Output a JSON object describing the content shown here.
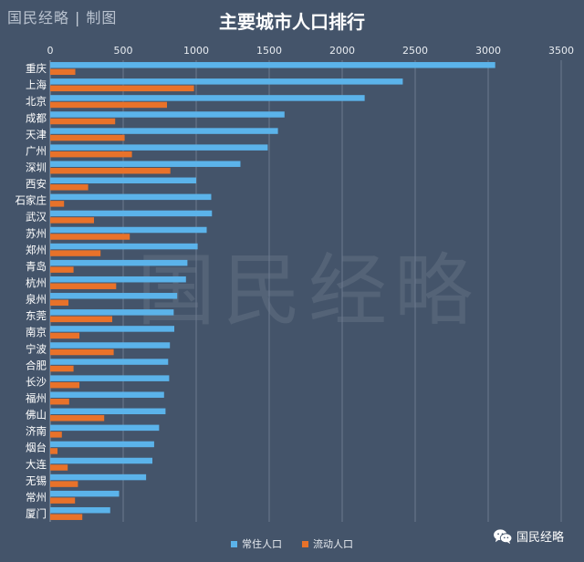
{
  "brand": {
    "name": "国民经略",
    "separator": "|",
    "suffix": "制图"
  },
  "badge": {
    "icon": "wechat-icon",
    "text": "国民经略"
  },
  "watermark": "国民经略",
  "colors": {
    "background": "#44546a",
    "resident": "#5bb3ea",
    "floating": "#e8722a",
    "grid": "#6b7a8f"
  },
  "chart_data": {
    "type": "bar",
    "orientation": "horizontal",
    "title": "主要城市人口排行",
    "xlabel": "",
    "ylabel": "",
    "xlim": [
      0,
      3500
    ],
    "xticks": [
      0,
      500,
      1000,
      1500,
      2000,
      2500,
      3000,
      3500
    ],
    "xaxis_position": "top",
    "grid": true,
    "legend_position": "bottom",
    "categories": [
      "重庆",
      "上海",
      "北京",
      "成都",
      "天津",
      "广州",
      "深圳",
      "西安",
      "石家庄",
      "武汉",
      "苏州",
      "郑州",
      "青岛",
      "杭州",
      "泉州",
      "东莞",
      "南京",
      "宁波",
      "合肥",
      "长沙",
      "福州",
      "佛山",
      "济南",
      "烟台",
      "大连",
      "无锡",
      "常州",
      "厦门"
    ],
    "series": [
      {
        "name": "常住人口",
        "color": "#5bb3ea",
        "values": [
          3048,
          2415,
          2154,
          1605,
          1560,
          1490,
          1303,
          1000,
          1103,
          1108,
          1072,
          1010,
          940,
          930,
          870,
          846,
          850,
          820,
          808,
          815,
          780,
          790,
          746,
          712,
          700,
          657,
          472,
          411
        ]
      },
      {
        "name": "流动人口",
        "color": "#e8722a",
        "values": [
          172,
          985,
          800,
          445,
          510,
          560,
          823,
          260,
          95,
          300,
          545,
          345,
          160,
          452,
          125,
          425,
          200,
          435,
          160,
          200,
          130,
          370,
          80,
          50,
          120,
          190,
          170,
          220
        ]
      }
    ]
  }
}
